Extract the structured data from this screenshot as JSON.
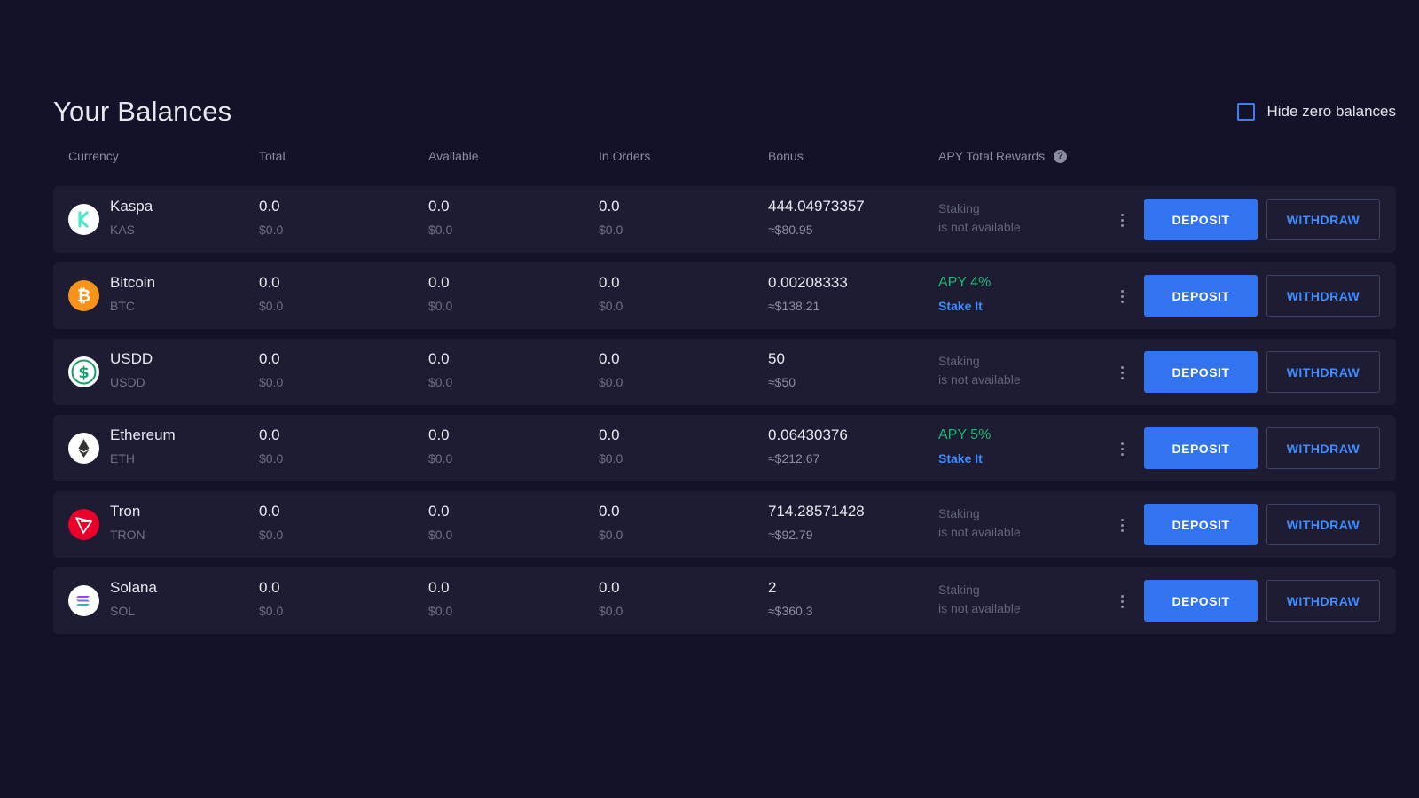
{
  "page": {
    "title": "Your Balances",
    "hide_zero_label": "Hide zero balances",
    "hide_zero_checked": false
  },
  "columns": {
    "currency": "Currency",
    "total": "Total",
    "available": "Available",
    "in_orders": "In Orders",
    "bonus": "Bonus",
    "apy": "APY Total Rewards"
  },
  "actions": {
    "deposit": "DEPOSIT",
    "withdraw": "WITHDRAW"
  },
  "rows": [
    {
      "name": "Kaspa",
      "ticker": "KAS",
      "icon": "kaspa-icon",
      "icon_color": "#ffffff",
      "total": "0.0",
      "total_usd": "$0.0",
      "available": "0.0",
      "available_usd": "$0.0",
      "in_orders": "0.0",
      "in_orders_usd": "$0.0",
      "bonus": "444.04973357",
      "bonus_usd": "≈$80.95",
      "staking_available": false,
      "staking_line1": "Staking",
      "staking_line2": "is not available"
    },
    {
      "name": "Bitcoin",
      "ticker": "BTC",
      "icon": "bitcoin-icon",
      "icon_color": "#f7931a",
      "total": "0.0",
      "total_usd": "$0.0",
      "available": "0.0",
      "available_usd": "$0.0",
      "in_orders": "0.0",
      "in_orders_usd": "$0.0",
      "bonus": "0.00208333",
      "bonus_usd": "≈$138.21",
      "staking_available": true,
      "apy": "APY 4%",
      "stake_label": "Stake It"
    },
    {
      "name": "USDD",
      "ticker": "USDD",
      "icon": "usdd-icon",
      "icon_color": "#ffffff",
      "total": "0.0",
      "total_usd": "$0.0",
      "available": "0.0",
      "available_usd": "$0.0",
      "in_orders": "0.0",
      "in_orders_usd": "$0.0",
      "bonus": "50",
      "bonus_usd": "≈$50",
      "staking_available": false,
      "staking_line1": "Staking",
      "staking_line2": "is not available"
    },
    {
      "name": "Ethereum",
      "ticker": "ETH",
      "icon": "ethereum-icon",
      "icon_color": "#ffffff",
      "total": "0.0",
      "total_usd": "$0.0",
      "available": "0.0",
      "available_usd": "$0.0",
      "in_orders": "0.0",
      "in_orders_usd": "$0.0",
      "bonus": "0.06430376",
      "bonus_usd": "≈$212.67",
      "staking_available": true,
      "apy": "APY 5%",
      "stake_label": "Stake It"
    },
    {
      "name": "Tron",
      "ticker": "TRON",
      "icon": "tron-icon",
      "icon_color": "#eb0029",
      "total": "0.0",
      "total_usd": "$0.0",
      "available": "0.0",
      "available_usd": "$0.0",
      "in_orders": "0.0",
      "in_orders_usd": "$0.0",
      "bonus": "714.28571428",
      "bonus_usd": "≈$92.79",
      "staking_available": false,
      "staking_line1": "Staking",
      "staking_line2": "is not available"
    },
    {
      "name": "Solana",
      "ticker": "SOL",
      "icon": "solana-icon",
      "icon_color": "#ffffff",
      "total": "0.0",
      "total_usd": "$0.0",
      "available": "0.0",
      "available_usd": "$0.0",
      "in_orders": "0.0",
      "in_orders_usd": "$0.0",
      "bonus": "2",
      "bonus_usd": "≈$360.3",
      "staking_available": false,
      "staking_line1": "Staking",
      "staking_line2": "is not available"
    }
  ]
}
